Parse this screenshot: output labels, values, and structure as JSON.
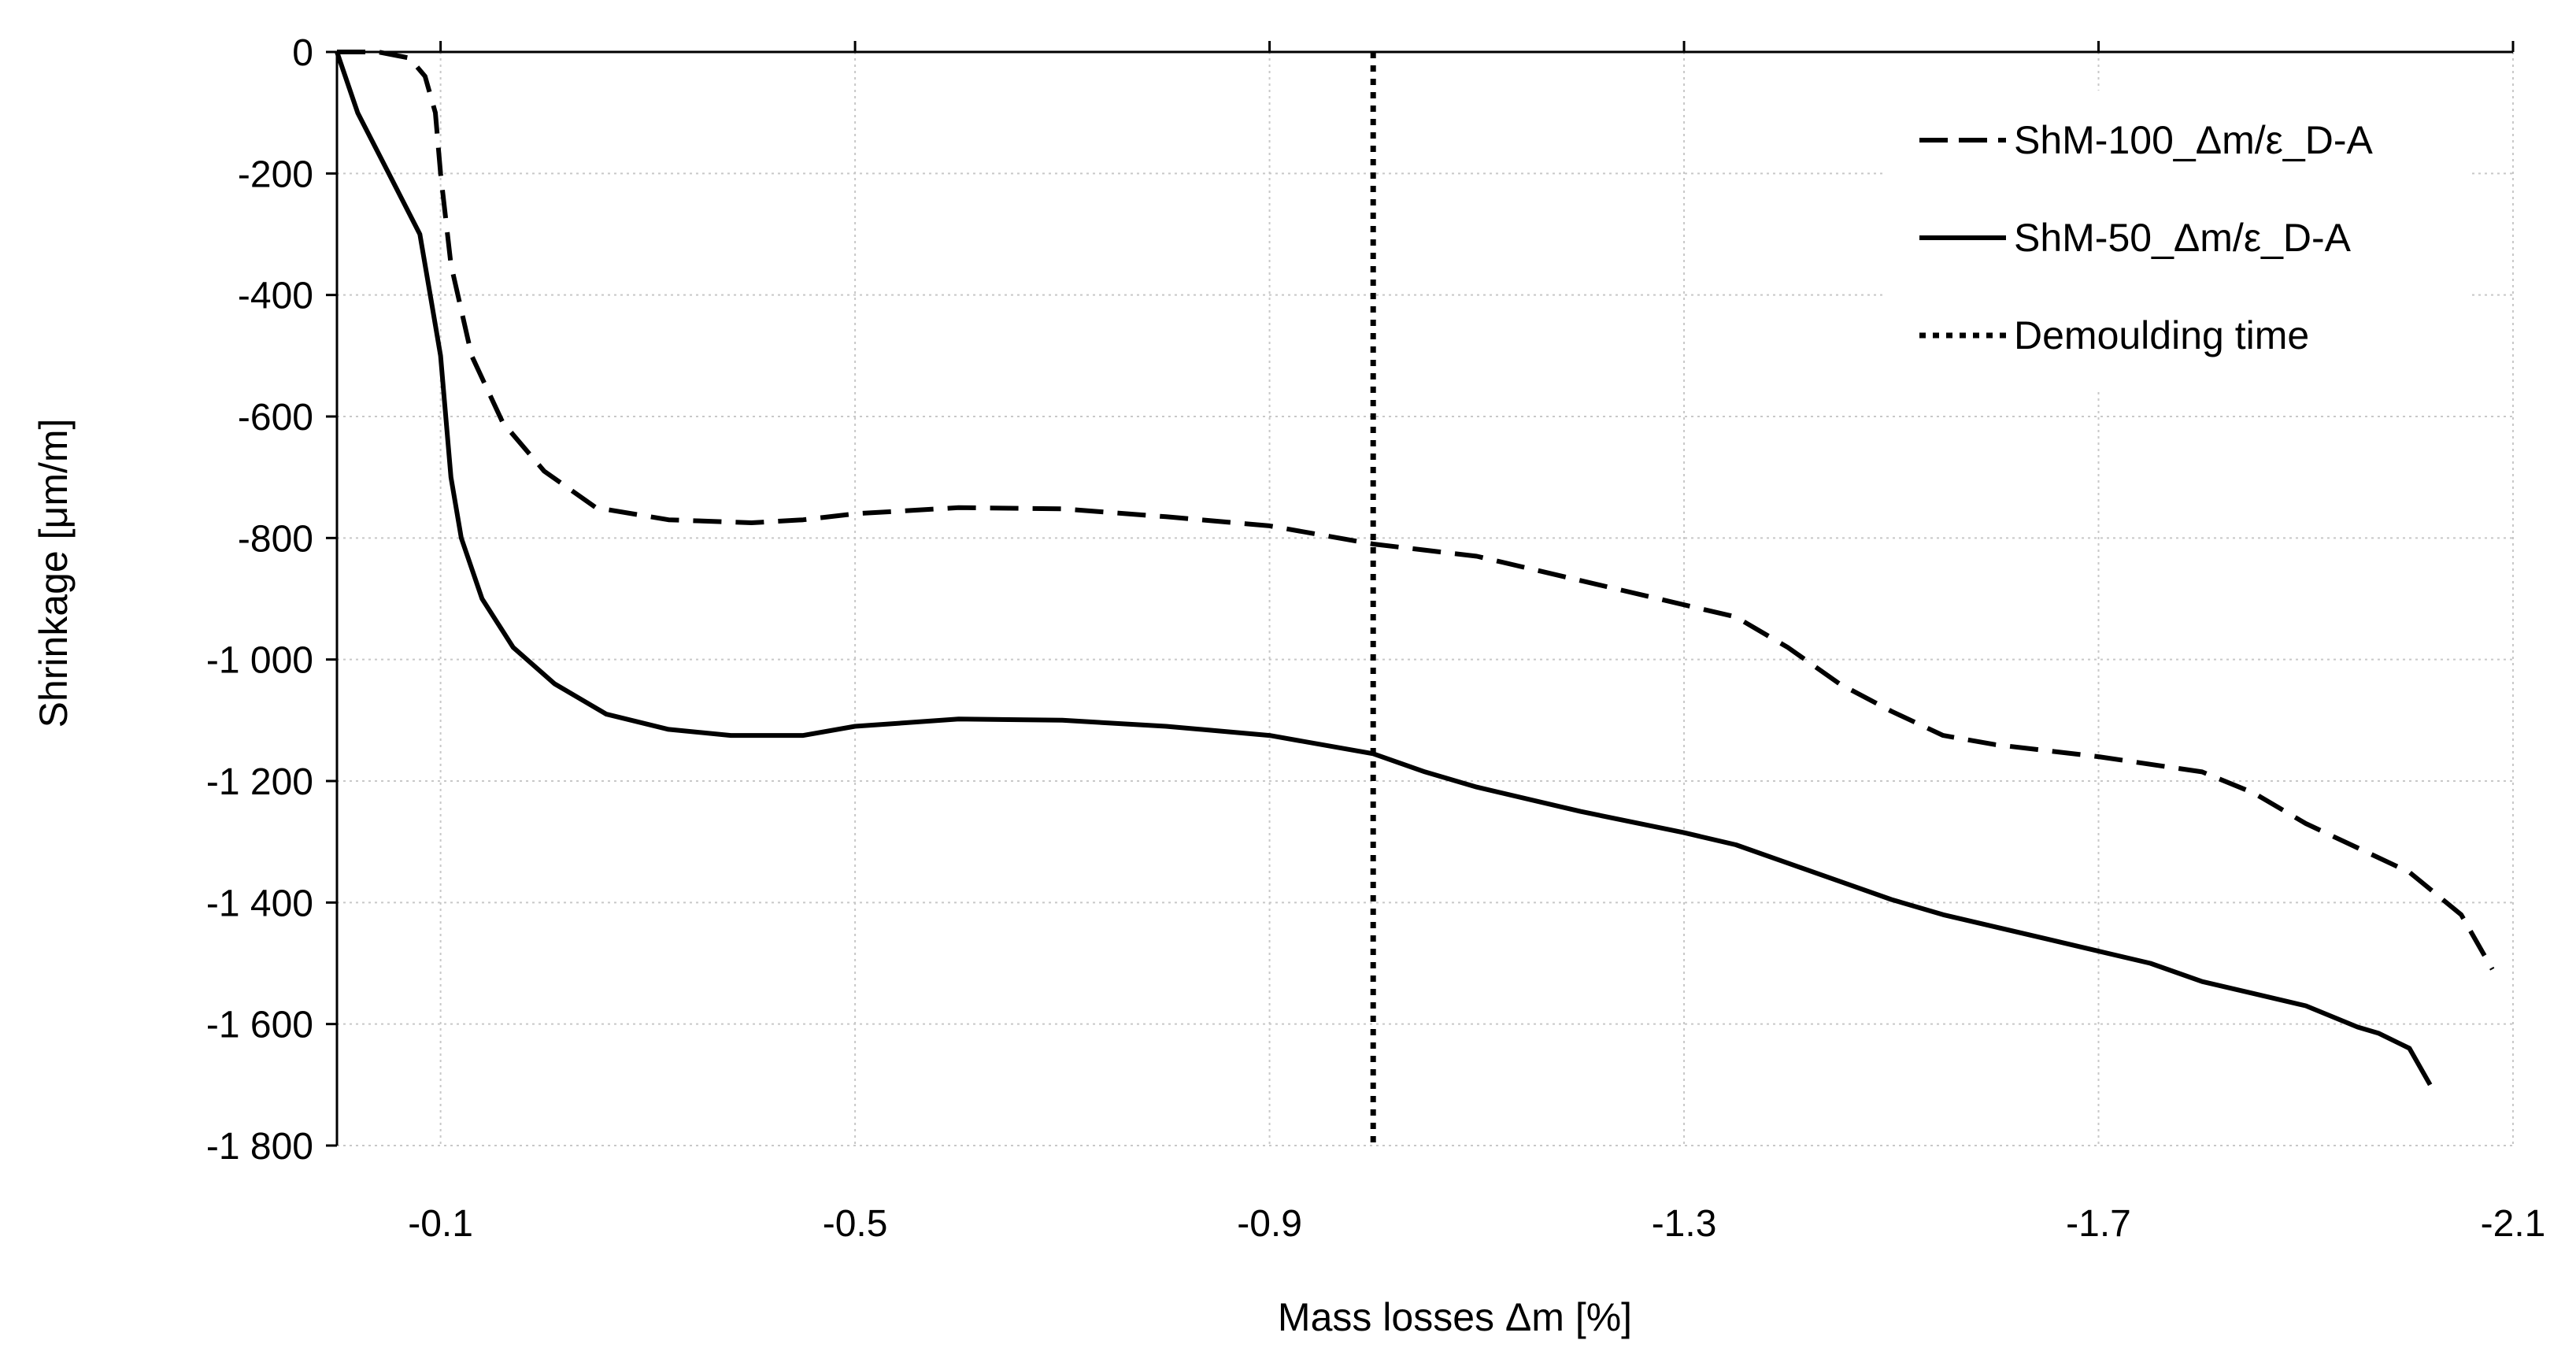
{
  "chart_data": {
    "type": "line",
    "title": "",
    "xlabel": "Mass losses Δm [%]",
    "ylabel": "Shrinkage [μm/m]",
    "xlim": [
      0.0,
      -2.1
    ],
    "ylim": [
      -1800,
      0
    ],
    "x_ticks": [
      -0.1,
      -0.5,
      -0.9,
      -1.3,
      -1.7,
      -2.1
    ],
    "x_tick_labels": [
      "-0.1",
      "-0.5",
      "-0.9",
      "-1.3",
      "-1.7",
      "-2.1"
    ],
    "y_ticks": [
      0,
      -200,
      -400,
      -600,
      -800,
      -1000,
      -1200,
      -1400,
      -1600,
      -1800
    ],
    "y_tick_labels": [
      "0",
      "-200",
      "-400",
      "-600",
      "-800",
      "-1 000",
      "-1 200",
      "-1 400",
      "-1 600",
      "-1 800"
    ],
    "grid": true,
    "legend_position": "top-right",
    "series": [
      {
        "name": "ShM-100_Δm/ε_D-A",
        "style": "dashed",
        "color": "#000000",
        "x": [
          0.0,
          -0.04,
          -0.07,
          -0.085,
          -0.095,
          -0.1,
          -0.11,
          -0.13,
          -0.16,
          -0.2,
          -0.25,
          -0.32,
          -0.4,
          -0.45,
          -0.5,
          -0.6,
          -0.7,
          -0.8,
          -0.9,
          -1.0,
          -1.1,
          -1.2,
          -1.3,
          -1.35,
          -1.4,
          -1.45,
          -1.5,
          -1.55,
          -1.6,
          -1.7,
          -1.8,
          -1.85,
          -1.9,
          -1.95,
          -2.0,
          -2.05,
          -2.08
        ],
        "y": [
          0,
          0,
          -10,
          -40,
          -100,
          -200,
          -350,
          -500,
          -610,
          -690,
          -750,
          -770,
          -775,
          -770,
          -760,
          -750,
          -752,
          -765,
          -780,
          -810,
          -830,
          -870,
          -910,
          -930,
          -980,
          -1040,
          -1085,
          -1125,
          -1140,
          -1160,
          -1185,
          -1220,
          -1270,
          -1310,
          -1350,
          -1420,
          -1510
        ]
      },
      {
        "name": "ShM-50_Δm/ε_D-A",
        "style": "solid",
        "color": "#000000",
        "x": [
          0.0,
          -0.02,
          -0.05,
          -0.08,
          -0.09,
          -0.1,
          -0.11,
          -0.12,
          -0.14,
          -0.17,
          -0.21,
          -0.26,
          -0.32,
          -0.38,
          -0.45,
          -0.5,
          -0.6,
          -0.7,
          -0.8,
          -0.9,
          -1.0,
          -1.05,
          -1.1,
          -1.2,
          -1.3,
          -1.35,
          -1.4,
          -1.45,
          -1.5,
          -1.55,
          -1.6,
          -1.65,
          -1.7,
          -1.75,
          -1.8,
          -1.85,
          -1.9,
          -1.95,
          -1.97,
          -2.0,
          -2.02
        ],
        "y": [
          0,
          -100,
          -200,
          -300,
          -400,
          -500,
          -700,
          -800,
          -900,
          -980,
          -1040,
          -1090,
          -1115,
          -1125,
          -1125,
          -1110,
          -1098,
          -1100,
          -1110,
          -1125,
          -1155,
          -1185,
          -1210,
          -1250,
          -1285,
          -1305,
          -1335,
          -1365,
          -1395,
          -1420,
          -1440,
          -1460,
          -1480,
          -1500,
          -1530,
          -1550,
          -1570,
          -1605,
          -1615,
          -1640,
          -1700
        ]
      },
      {
        "name": "Demoulding time",
        "style": "dotted",
        "color": "#000000",
        "x": [
          -1.0,
          -1.0
        ],
        "y": [
          0,
          -1800
        ]
      }
    ]
  }
}
